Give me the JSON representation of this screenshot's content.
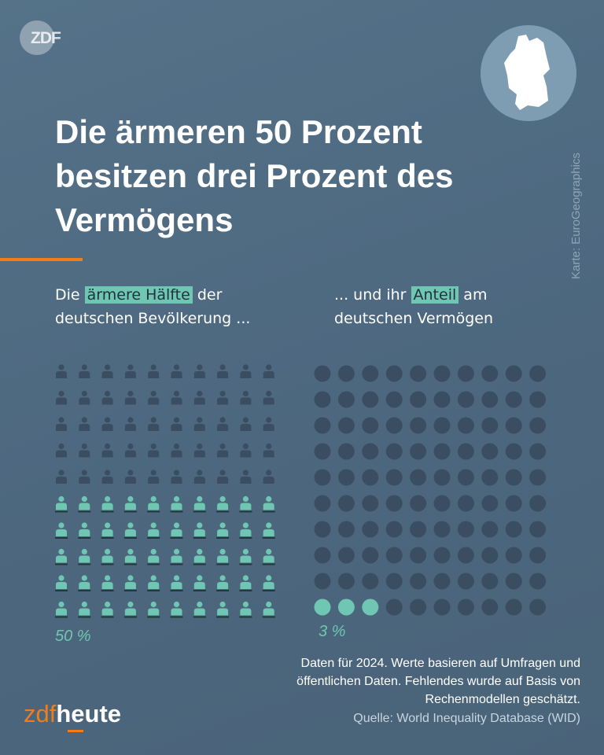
{
  "logo": "ZDF",
  "title": "Die ärmeren 50 Prozent besitzen drei Prozent des Vermögens",
  "map_credit": "Karte: EuroGeographics",
  "left_sub": {
    "pre": "Die ",
    "highlight": "ärmere Hälfte",
    "post": " der",
    "line2": "deutschen Bevölkerung ..."
  },
  "right_sub": {
    "pre": "... und ihr ",
    "highlight": "Anteil",
    "post": " am",
    "line2": "deutschen Vermögen"
  },
  "note": "Daten für 2024. Werte basieren auf Umfragen und öffentlichen Daten. Fehlendes wurde auf Basis von Rechenmodellen geschätzt.",
  "source": "Quelle: World Inequality Database (WID)",
  "brand": {
    "a": "zdf",
    "b": "heute"
  },
  "colors": {
    "highlight": "#6fc7b3",
    "muted": "#3b4e61",
    "accent": "#f07d1a"
  },
  "chart_data": [
    {
      "type": "waffle",
      "icon": "person-icon",
      "grid": [
        10,
        10
      ],
      "total": 100,
      "highlighted": 50,
      "label": "50 %"
    },
    {
      "type": "waffle",
      "icon": "dot",
      "grid": [
        10,
        10
      ],
      "total": 100,
      "highlighted": 3,
      "label": "3 %"
    }
  ]
}
